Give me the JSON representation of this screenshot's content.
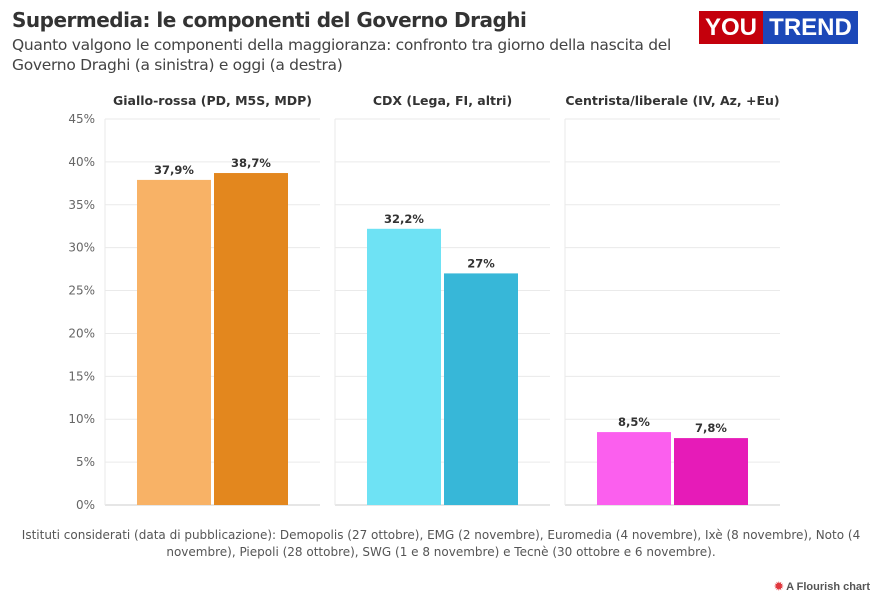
{
  "title": "Supermedia: le componenti del Governo Draghi",
  "subtitle": "Quanto valgono le componenti della maggioranza: confronto tra giorno della nascita del Governo Draghi (a sinistra) e oggi (a destra)",
  "logo": {
    "part1": "YOU",
    "part2": "TREND",
    "colors": [
      "#c4000c",
      "#1c48b8"
    ]
  },
  "footer": "Istituti considerati (data di pubblicazione): Demopolis (27 ottobre), EMG (2 novembre), Euromedia (4 novembre), Ixè (8 novembre), Noto (4 novembre), Piepoli (28 ottobre), SWG (1 e 8 novembre) e Tecnè (30 ottobre e 6 novembre).",
  "credit": "A Flourish chart",
  "chart_data": {
    "type": "bar",
    "ylim": [
      0,
      45
    ],
    "yticks": [
      "0%",
      "5%",
      "10%",
      "15%",
      "20%",
      "25%",
      "30%",
      "35%",
      "40%",
      "45%"
    ],
    "grid": true,
    "panels": [
      {
        "title": "Giallo-rossa (PD, M5S, MDP)",
        "values": [
          37.9,
          38.7
        ],
        "labels": [
          "37,9%",
          "38,7%"
        ],
        "colors": [
          "#f8b266",
          "#e3871e"
        ]
      },
      {
        "title": "CDX (Lega, FI, altri)",
        "values": [
          32.2,
          27
        ],
        "labels": [
          "32,2%",
          "27%"
        ],
        "colors": [
          "#6ee2f4",
          "#37b7d8"
        ]
      },
      {
        "title": "Centrista/liberale (IV, Az, +Eu)",
        "values": [
          8.5,
          7.8
        ],
        "labels": [
          "8,5%",
          "7,8%"
        ],
        "colors": [
          "#fb5fee",
          "#e61bb8"
        ]
      }
    ]
  }
}
